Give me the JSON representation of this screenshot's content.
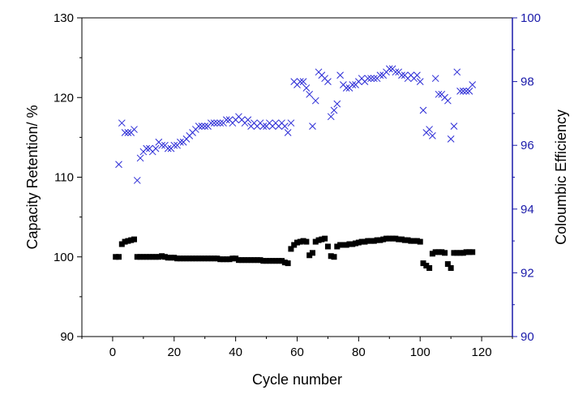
{
  "chart_data": {
    "type": "scatter",
    "xlabel": "Cycle number",
    "ylabel_left": "Capacity Retention/ %",
    "ylabel_right": "Coloumbic Efficiency",
    "xlim": [
      -10,
      130
    ],
    "ylim_left": [
      90,
      130
    ],
    "ylim_right": [
      90,
      100
    ],
    "x_ticks": [
      0,
      20,
      40,
      60,
      80,
      100,
      120
    ],
    "y_left_ticks": [
      90,
      100,
      110,
      120,
      130
    ],
    "y_right_ticks": [
      90,
      92,
      94,
      96,
      98,
      100
    ],
    "grid": false,
    "colors": {
      "left_axis": "#000000",
      "right_axis": "#1a1aaa",
      "capacity_marker": "#000000",
      "efficiency_marker": "#2a2ad6"
    },
    "series": [
      {
        "axis": "left",
        "marker": "square",
        "x": [
          1,
          2,
          3,
          4,
          5,
          6,
          7,
          8,
          9,
          10,
          11,
          12,
          13,
          14,
          15,
          16,
          17,
          18,
          19,
          20,
          21,
          22,
          23,
          24,
          25,
          26,
          27,
          28,
          29,
          30,
          31,
          32,
          33,
          34,
          35,
          36,
          37,
          38,
          39,
          40,
          41,
          42,
          43,
          44,
          45,
          46,
          47,
          48,
          49,
          50,
          51,
          52,
          53,
          54,
          55,
          56,
          57,
          58,
          59,
          60,
          61,
          62,
          63,
          64,
          65,
          66,
          67,
          68,
          69,
          70,
          71,
          72,
          73,
          74,
          75,
          76,
          77,
          78,
          79,
          80,
          81,
          82,
          83,
          84,
          85,
          86,
          87,
          88,
          89,
          90,
          91,
          92,
          93,
          94,
          95,
          96,
          97,
          98,
          99,
          100,
          101,
          102,
          103,
          104,
          105,
          106,
          107,
          108,
          109,
          110,
          111,
          112,
          113,
          114,
          115,
          116,
          117
        ],
        "values": [
          100,
          100,
          101.6,
          101.9,
          102.0,
          102.1,
          102.2,
          100.0,
          100.0,
          100.0,
          100.0,
          100.0,
          100.0,
          100.0,
          100.0,
          100.1,
          100.0,
          99.9,
          99.9,
          99.9,
          99.8,
          99.8,
          99.8,
          99.8,
          99.8,
          99.8,
          99.8,
          99.8,
          99.8,
          99.8,
          99.8,
          99.8,
          99.8,
          99.8,
          99.7,
          99.7,
          99.7,
          99.7,
          99.8,
          99.8,
          99.6,
          99.6,
          99.6,
          99.6,
          99.6,
          99.6,
          99.6,
          99.6,
          99.5,
          99.5,
          99.5,
          99.5,
          99.5,
          99.5,
          99.5,
          99.3,
          99.2,
          101.0,
          101.5,
          101.8,
          101.9,
          102.0,
          101.9,
          100.2,
          100.5,
          101.9,
          102.1,
          102.2,
          102.3,
          101.3,
          100.1,
          100.0,
          101.3,
          101.5,
          101.5,
          101.5,
          101.6,
          101.6,
          101.7,
          101.8,
          101.9,
          101.9,
          102.0,
          102.0,
          102.0,
          102.1,
          102.1,
          102.2,
          102.3,
          102.3,
          102.3,
          102.3,
          102.2,
          102.2,
          102.1,
          102.1,
          102.0,
          102.0,
          102.0,
          101.9,
          99.2,
          98.9,
          98.6,
          100.4,
          100.6,
          100.6,
          100.6,
          100.5,
          99.1,
          98.6,
          100.5,
          100.5,
          100.5,
          100.5,
          100.6,
          100.6,
          100.6
        ]
      },
      {
        "axis": "right",
        "marker": "x",
        "x": [
          2,
          3,
          4,
          5,
          6,
          7,
          8,
          9,
          10,
          11,
          12,
          13,
          14,
          15,
          16,
          17,
          18,
          19,
          20,
          21,
          22,
          23,
          24,
          25,
          26,
          27,
          28,
          29,
          30,
          31,
          32,
          33,
          34,
          35,
          36,
          37,
          38,
          39,
          40,
          41,
          42,
          43,
          44,
          45,
          46,
          47,
          48,
          49,
          50,
          51,
          52,
          53,
          54,
          55,
          56,
          57,
          58,
          59,
          60,
          61,
          62,
          63,
          64,
          65,
          66,
          67,
          68,
          69,
          70,
          71,
          72,
          73,
          74,
          75,
          76,
          77,
          78,
          79,
          80,
          81,
          82,
          83,
          84,
          85,
          86,
          87,
          88,
          89,
          90,
          91,
          92,
          93,
          94,
          95,
          96,
          97,
          98,
          99,
          100,
          101,
          102,
          103,
          104,
          105,
          106,
          107,
          108,
          109,
          110,
          111,
          112,
          113,
          114,
          115,
          116,
          117
        ],
        "values": [
          95.4,
          96.7,
          96.4,
          96.4,
          96.4,
          96.5,
          94.9,
          95.6,
          95.8,
          95.9,
          95.9,
          95.8,
          95.9,
          96.1,
          96.0,
          96.0,
          95.9,
          95.9,
          96.0,
          96.0,
          96.1,
          96.1,
          96.2,
          96.3,
          96.4,
          96.5,
          96.6,
          96.6,
          96.6,
          96.6,
          96.7,
          96.7,
          96.7,
          96.7,
          96.7,
          96.8,
          96.8,
          96.7,
          96.8,
          96.9,
          96.8,
          96.7,
          96.8,
          96.6,
          96.7,
          96.6,
          96.7,
          96.6,
          96.6,
          96.7,
          96.6,
          96.7,
          96.6,
          96.7,
          96.6,
          96.4,
          96.7,
          98.0,
          97.9,
          98.0,
          98.0,
          97.8,
          97.6,
          96.6,
          97.4,
          98.3,
          98.2,
          98.1,
          98.0,
          96.9,
          97.1,
          97.3,
          98.2,
          97.9,
          97.8,
          97.8,
          97.9,
          97.9,
          98.0,
          98.1,
          98.0,
          98.1,
          98.1,
          98.1,
          98.1,
          98.2,
          98.2,
          98.3,
          98.4,
          98.4,
          98.3,
          98.3,
          98.2,
          98.2,
          98.1,
          98.2,
          98.1,
          98.2,
          98.0,
          97.1,
          96.4,
          96.5,
          96.3,
          98.1,
          97.6,
          97.6,
          97.5,
          97.4,
          96.2,
          96.6,
          98.3,
          97.7,
          97.7,
          97.7,
          97.7,
          97.9
        ]
      }
    ]
  }
}
